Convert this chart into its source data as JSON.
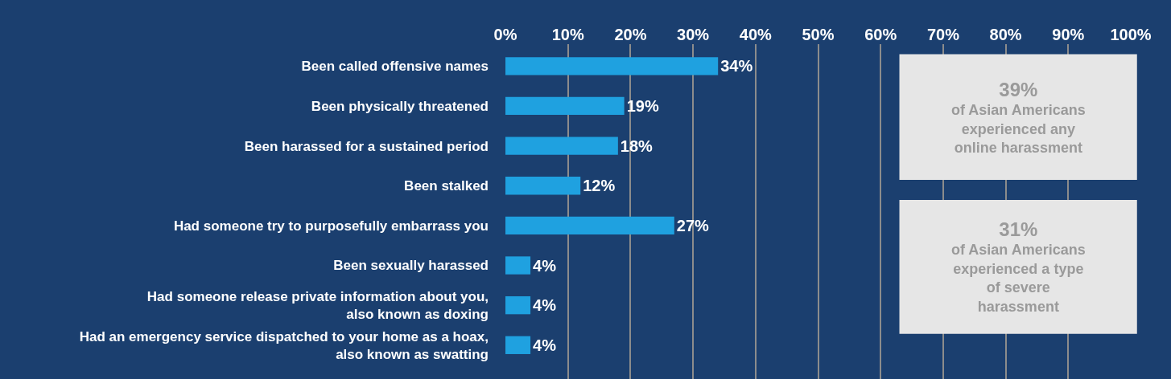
{
  "chart_data": {
    "type": "bar",
    "orientation": "horizontal",
    "categories": [
      "Been called offensive names",
      "Been physically threatened",
      "Been harassed for a sustained period",
      "Been stalked",
      "Had someone try to purposefully embarrass you",
      "Been sexually harassed",
      "Had someone release private information about you, also known as doxing",
      "Had an emergency service dispatched to your home as a hoax, also known as swatting"
    ],
    "values": [
      34,
      19,
      18,
      12,
      27,
      4,
      4,
      4
    ],
    "value_labels": [
      "34%",
      "19%",
      "18%",
      "12%",
      "27%",
      "4%",
      "4%",
      "4%"
    ],
    "color": "#1fa1e0",
    "xlim": [
      0,
      100
    ],
    "xticks": [
      {
        "value": 0,
        "label": "0%"
      },
      {
        "value": 10,
        "label": "10%"
      },
      {
        "value": 20,
        "label": "20%"
      },
      {
        "value": 30,
        "label": "30%"
      },
      {
        "value": 40,
        "label": "40%"
      },
      {
        "value": 50,
        "label": "50%"
      },
      {
        "value": 60,
        "label": "60%"
      },
      {
        "value": 70,
        "label": "70%"
      },
      {
        "value": 80,
        "label": "80%"
      },
      {
        "value": 90,
        "label": "90%"
      },
      {
        "value": 100,
        "label": "100%"
      }
    ],
    "grid": "x",
    "legend": false,
    "annotations": [
      "39%",
      "of Asian Americans experienced any online harassment",
      "31%",
      "of Asian Americans experienced a type of severe harassment"
    ]
  }
}
